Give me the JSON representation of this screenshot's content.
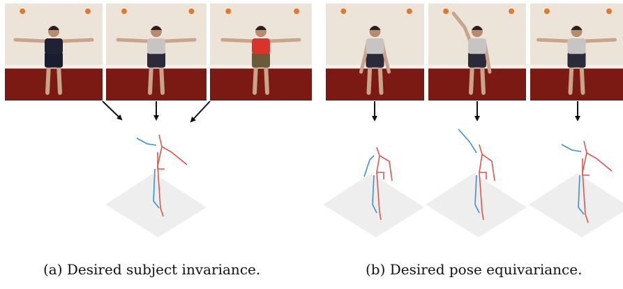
{
  "captions": {
    "a": "(a) Desired subject invariance.",
    "b": "(b) Desired pose equivariance."
  },
  "colors": {
    "skeleton_left": "#3c8fd8",
    "skeleton_right": "#e0534a",
    "floor": "#eeeeee",
    "arrow": "#111111",
    "room_wall": "#ece3d9",
    "room_floor": "#7a1a12"
  },
  "panel_a": {
    "photos": [
      {
        "subject": "woman-dark-top",
        "pose": "t-pose"
      },
      {
        "subject": "man-grey-shirt",
        "pose": "t-pose"
      },
      {
        "subject": "man-red-shirt",
        "pose": "t-pose"
      }
    ],
    "skeletons": [
      {
        "pose": "t-pose"
      }
    ]
  },
  "panel_b": {
    "photos": [
      {
        "subject": "man-grey-shirt",
        "pose": "arms-down"
      },
      {
        "subject": "man-grey-shirt",
        "pose": "arm-raised"
      },
      {
        "subject": "man-grey-shirt",
        "pose": "t-pose"
      }
    ],
    "skeletons": [
      {
        "pose": "arms-down"
      },
      {
        "pose": "arm-raised"
      },
      {
        "pose": "t-pose"
      }
    ]
  }
}
